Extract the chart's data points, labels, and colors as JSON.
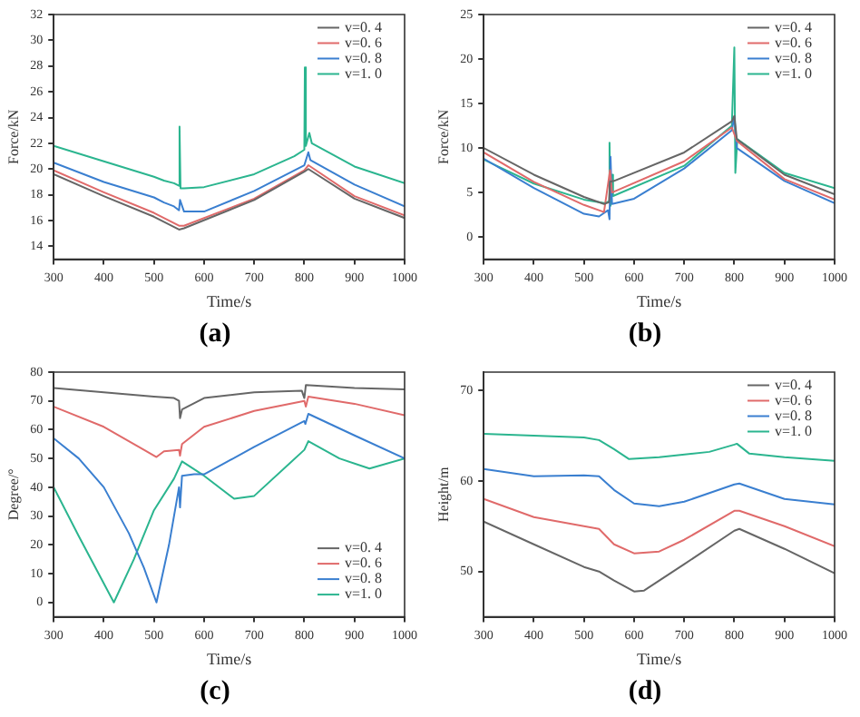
{
  "chart_data": [
    {
      "type": "line",
      "title": "(a)",
      "xlabel": "Time/s",
      "ylabel": "Force/kN",
      "xlim": [
        300,
        1000
      ],
      "xticks": [
        300,
        400,
        500,
        600,
        700,
        800,
        900,
        1000
      ],
      "ylim": [
        13,
        32
      ],
      "yticks": [
        14,
        16,
        18,
        20,
        22,
        24,
        26,
        28,
        30,
        32
      ],
      "grid": false,
      "legend": "top right",
      "series": [
        {
          "name": "v=0. 4",
          "color": "#666666",
          "x": [
            300,
            400,
            500,
            550,
            560,
            700,
            800,
            808,
            900,
            1000
          ],
          "values": [
            19.6,
            17.9,
            16.3,
            15.3,
            15.4,
            17.6,
            19.8,
            20.0,
            17.7,
            16.2
          ]
        },
        {
          "name": "v=0. 6",
          "color": "#e06a6a",
          "x": [
            300,
            400,
            500,
            550,
            560,
            700,
            800,
            808,
            900,
            1000
          ],
          "values": [
            19.9,
            18.2,
            16.6,
            15.6,
            15.6,
            17.7,
            19.9,
            20.3,
            17.9,
            16.4
          ]
        },
        {
          "name": "v=0. 8",
          "color": "#3a7fd0",
          "x": [
            300,
            400,
            500,
            520,
            540,
            550,
            552,
            560,
            600,
            700,
            800,
            808,
            812,
            900,
            1000
          ],
          "values": [
            20.5,
            19.0,
            17.8,
            17.4,
            17.1,
            16.8,
            17.6,
            16.7,
            16.7,
            18.3,
            20.3,
            21.3,
            20.7,
            18.8,
            17.1
          ]
        },
        {
          "name": "v=1. 0",
          "color": "#2bb58f",
          "x": [
            300,
            400,
            500,
            520,
            540,
            550,
            551,
            553,
            560,
            600,
            700,
            780,
            800,
            801,
            803,
            810,
            815,
            900,
            1000
          ],
          "values": [
            21.8,
            20.6,
            19.4,
            19.1,
            18.9,
            18.7,
            23.3,
            18.5,
            18.5,
            18.6,
            19.6,
            21.0,
            21.5,
            27.9,
            21.8,
            22.8,
            22.0,
            20.2,
            18.9
          ]
        }
      ]
    },
    {
      "type": "line",
      "title": "(b)",
      "xlabel": "Time/s",
      "ylabel": "Force/kN",
      "xlim": [
        300,
        1000
      ],
      "xticks": [
        300,
        400,
        500,
        600,
        700,
        800,
        900,
        1000
      ],
      "ylim": [
        -2.5,
        25
      ],
      "yticks": [
        0,
        5,
        10,
        15,
        20,
        25
      ],
      "grid": false,
      "legend": "top right",
      "series": [
        {
          "name": "v=0. 4",
          "color": "#666666",
          "x": [
            300,
            400,
            500,
            540,
            550,
            552,
            560,
            700,
            795,
            800,
            805,
            900,
            1000
          ],
          "values": [
            10.0,
            7.0,
            4.5,
            3.7,
            3.9,
            6.2,
            6.3,
            9.5,
            13.0,
            13.6,
            11.0,
            7.0,
            4.8
          ]
        },
        {
          "name": "v=0. 6",
          "color": "#e06a6a",
          "x": [
            300,
            400,
            500,
            540,
            552,
            556,
            700,
            795,
            805,
            900,
            1000
          ],
          "values": [
            9.5,
            6.2,
            3.6,
            2.8,
            7.5,
            5.0,
            8.5,
            12.3,
            10.8,
            6.5,
            4.2
          ]
        },
        {
          "name": "v=0. 8",
          "color": "#3a7fd0",
          "x": [
            300,
            400,
            500,
            530,
            548,
            551,
            553,
            556,
            600,
            700,
            795,
            800,
            805,
            900,
            1000
          ],
          "values": [
            8.8,
            5.5,
            2.6,
            2.3,
            3.0,
            2.0,
            9.0,
            3.7,
            4.3,
            7.7,
            12.0,
            13.5,
            10.0,
            6.3,
            3.8
          ]
        },
        {
          "name": "v=1. 0",
          "color": "#2bb58f",
          "x": [
            300,
            400,
            500,
            540,
            550,
            551,
            553,
            556,
            558,
            700,
            795,
            800,
            802,
            806,
            900,
            1000
          ],
          "values": [
            8.7,
            6.0,
            4.2,
            3.8,
            4.0,
            10.6,
            3.5,
            7.0,
            4.6,
            8.0,
            12.5,
            21.3,
            7.2,
            11.0,
            7.2,
            5.5
          ]
        }
      ]
    },
    {
      "type": "line",
      "title": "(c)",
      "xlabel": "Time/s",
      "ylabel": "Degree/°",
      "xlim": [
        300,
        1000
      ],
      "xticks": [
        300,
        400,
        500,
        600,
        700,
        800,
        900,
        1000
      ],
      "ylim": [
        -5,
        80
      ],
      "yticks": [
        0,
        10,
        20,
        30,
        40,
        50,
        60,
        70,
        80
      ],
      "grid": false,
      "legend": "bottom right",
      "series": [
        {
          "name": "v=0. 4",
          "color": "#666666",
          "x": [
            300,
            400,
            500,
            540,
            550,
            552,
            556,
            600,
            700,
            795,
            800,
            803,
            900,
            1000
          ],
          "values": [
            74.5,
            73,
            71.5,
            71,
            70,
            64,
            67,
            71,
            73,
            73.5,
            71,
            75.5,
            74.5,
            74
          ]
        },
        {
          "name": "v=0. 6",
          "color": "#e06a6a",
          "x": [
            300,
            400,
            480,
            505,
            520,
            550,
            552,
            556,
            600,
            700,
            800,
            803,
            808,
            900,
            1000
          ],
          "values": [
            68,
            61,
            53,
            50.5,
            52.5,
            53,
            51,
            55,
            61,
            66.5,
            70,
            68,
            71.5,
            69,
            65
          ]
        },
        {
          "name": "v=0. 8",
          "color": "#3a7fd0",
          "x": [
            300,
            350,
            400,
            450,
            480,
            505,
            530,
            550,
            552,
            556,
            580,
            600,
            700,
            800,
            802,
            808,
            900,
            1000
          ],
          "values": [
            57,
            50,
            40,
            24,
            12,
            0,
            20,
            40,
            33,
            44,
            44.5,
            44.5,
            54,
            63,
            62,
            65.5,
            58,
            50
          ]
        },
        {
          "name": "v=1. 0",
          "color": "#2bb58f",
          "x": [
            300,
            350,
            420,
            460,
            500,
            540,
            556,
            600,
            660,
            700,
            800,
            808,
            870,
            930,
            1000
          ],
          "values": [
            40,
            23,
            0,
            15,
            32,
            43,
            49,
            44,
            36,
            37,
            53,
            56,
            50,
            46.5,
            50
          ]
        }
      ]
    },
    {
      "type": "line",
      "title": "(d)",
      "xlabel": "Time/s",
      "ylabel": "Height/m",
      "xlim": [
        300,
        1000
      ],
      "xticks": [
        300,
        400,
        500,
        600,
        700,
        800,
        900,
        1000
      ],
      "ylim": [
        45,
        72
      ],
      "yticks": [
        50,
        60,
        70
      ],
      "grid": false,
      "legend": "top right",
      "series": [
        {
          "name": "v=0. 4",
          "color": "#666666",
          "x": [
            300,
            400,
            500,
            530,
            560,
            600,
            620,
            700,
            800,
            810,
            900,
            1000
          ],
          "values": [
            55.5,
            53,
            50.5,
            50,
            49,
            47.8,
            47.9,
            50.8,
            54.5,
            54.7,
            52.5,
            49.8
          ]
        },
        {
          "name": "v=0. 6",
          "color": "#e06a6a",
          "x": [
            300,
            400,
            500,
            530,
            560,
            600,
            650,
            700,
            800,
            810,
            900,
            1000
          ],
          "values": [
            58,
            56,
            55,
            54.7,
            53,
            52,
            52.2,
            53.5,
            56.7,
            56.7,
            55,
            52.8
          ]
        },
        {
          "name": "v=0. 8",
          "color": "#3a7fd0",
          "x": [
            300,
            400,
            500,
            530,
            560,
            600,
            650,
            700,
            800,
            810,
            900,
            1000
          ],
          "values": [
            61.3,
            60.5,
            60.6,
            60.5,
            59,
            57.5,
            57.2,
            57.7,
            59.6,
            59.7,
            58,
            57.4
          ]
        },
        {
          "name": "v=1. 0",
          "color": "#2bb58f",
          "x": [
            300,
            400,
            500,
            530,
            560,
            590,
            650,
            750,
            800,
            805,
            830,
            900,
            1000
          ],
          "values": [
            65.2,
            65,
            64.8,
            64.5,
            63.5,
            62.4,
            62.6,
            63.2,
            64,
            64.1,
            63,
            62.6,
            62.2
          ]
        }
      ]
    }
  ]
}
